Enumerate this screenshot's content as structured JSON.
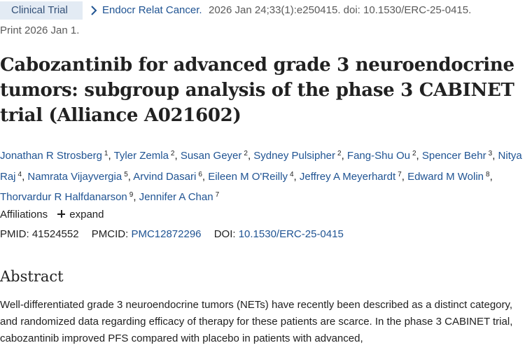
{
  "header": {
    "badge": "Clinical Trial",
    "journal": "Endocr Relat Cancer.",
    "citation": " 2026 Jan 24;33(1):e250415. doi: 10.1530/ERC-25-0415.",
    "print_date": "Print 2026 Jan 1."
  },
  "title": "Cabozantinib for advanced grade 3 neuroendocrine tumors: subgroup analysis of the phase 3 CABINET trial (Alliance A021602)",
  "authors": [
    {
      "name": "Jonathan R Strosberg",
      "sup": "1"
    },
    {
      "name": "Tyler Zemla",
      "sup": "2"
    },
    {
      "name": "Susan Geyer",
      "sup": "2"
    },
    {
      "name": "Sydney Pulsipher",
      "sup": "2"
    },
    {
      "name": "Fang-Shu Ou",
      "sup": "2"
    },
    {
      "name": "Spencer Behr",
      "sup": "3"
    },
    {
      "name": "Nitya Raj",
      "sup": "4"
    },
    {
      "name": "Namrata Vijayvergia",
      "sup": "5"
    },
    {
      "name": "Arvind Dasari",
      "sup": "6"
    },
    {
      "name": "Eileen M O'Reilly",
      "sup": "4"
    },
    {
      "name": "Jeffrey A Meyerhardt",
      "sup": "7"
    },
    {
      "name": "Edward M Wolin",
      "sup": "8"
    },
    {
      "name": "Thorvardur R Halfdanarson",
      "sup": "9"
    },
    {
      "name": "Jennifer A Chan",
      "sup": "7"
    }
  ],
  "affiliations": {
    "label": "Affiliations",
    "expand": "expand"
  },
  "identifiers": {
    "pmid_label": "PMID:",
    "pmid": "41524552",
    "pmcid_label": "PMCID:",
    "pmcid": "PMC12872296",
    "doi_label": "DOI:",
    "doi": "10.1530/ERC-25-0415"
  },
  "abstract": {
    "heading": "Abstract",
    "text": "Well-differentiated grade 3 neuroendocrine tumors (NETs) have recently been described as a distinct category, and randomized data regarding efficacy of therapy for these patients are scarce. In the phase 3 CABINET trial, cabozantinib improved PFS compared with placebo in patients with advanced,"
  },
  "colors": {
    "link": "#205493",
    "badge_bg": "#e3ebf4",
    "badge_text": "#345178"
  },
  "icons": {
    "breadcrumb": "chevron-right-icon",
    "expand": "plus-icon"
  }
}
